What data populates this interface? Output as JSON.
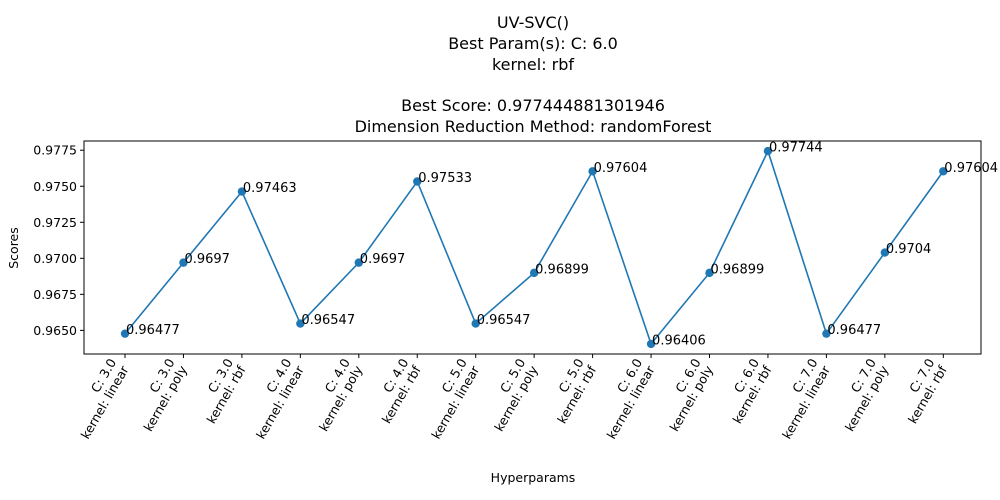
{
  "chart_data": {
    "type": "line",
    "title_lines": [
      "UV-SVC()",
      "Best Param(s): C: 6.0",
      "kernel: rbf",
      "",
      "Best Score: 0.977444881301946",
      "Dimension Reduction Method: randomForest"
    ],
    "xlabel": "Hyperparams",
    "ylabel": "Scores",
    "categories": [
      [
        "C: 3.0",
        "kernel: linear"
      ],
      [
        "C: 3.0",
        "kernel: poly"
      ],
      [
        "C: 3.0",
        "kernel: rbf"
      ],
      [
        "C: 4.0",
        "kernel: linear"
      ],
      [
        "C: 4.0",
        "kernel: poly"
      ],
      [
        "C: 4.0",
        "kernel: rbf"
      ],
      [
        "C: 5.0",
        "kernel: linear"
      ],
      [
        "C: 5.0",
        "kernel: poly"
      ],
      [
        "C: 5.0",
        "kernel: rbf"
      ],
      [
        "C: 6.0",
        "kernel: linear"
      ],
      [
        "C: 6.0",
        "kernel: poly"
      ],
      [
        "C: 6.0",
        "kernel: rbf"
      ],
      [
        "C: 7.0",
        "kernel: linear"
      ],
      [
        "C: 7.0",
        "kernel: poly"
      ],
      [
        "C: 7.0",
        "kernel: rbf"
      ]
    ],
    "values": [
      0.96477,
      0.9697,
      0.97463,
      0.96547,
      0.9697,
      0.97533,
      0.96547,
      0.96899,
      0.97604,
      0.96406,
      0.96899,
      0.97744,
      0.96477,
      0.9704,
      0.97604
    ],
    "data_labels": [
      "0.96477",
      "0.9697",
      "0.97463",
      "0.96547",
      "0.9697",
      "0.97533",
      "0.96547",
      "0.96899",
      "0.97604",
      "0.96406",
      "0.96899",
      "0.97744",
      "0.96477",
      "0.9704",
      "0.97604"
    ],
    "yticks": [
      0.965,
      0.9675,
      0.97,
      0.9725,
      0.975,
      0.9775
    ],
    "ytick_labels": [
      "0.9650",
      "0.9675",
      "0.9700",
      "0.9725",
      "0.9750",
      "0.9775"
    ],
    "ylim": [
      0.96336,
      0.97814
    ],
    "grid": false,
    "line_color": "#1f77b4",
    "marker_color": "#1f77b4"
  }
}
